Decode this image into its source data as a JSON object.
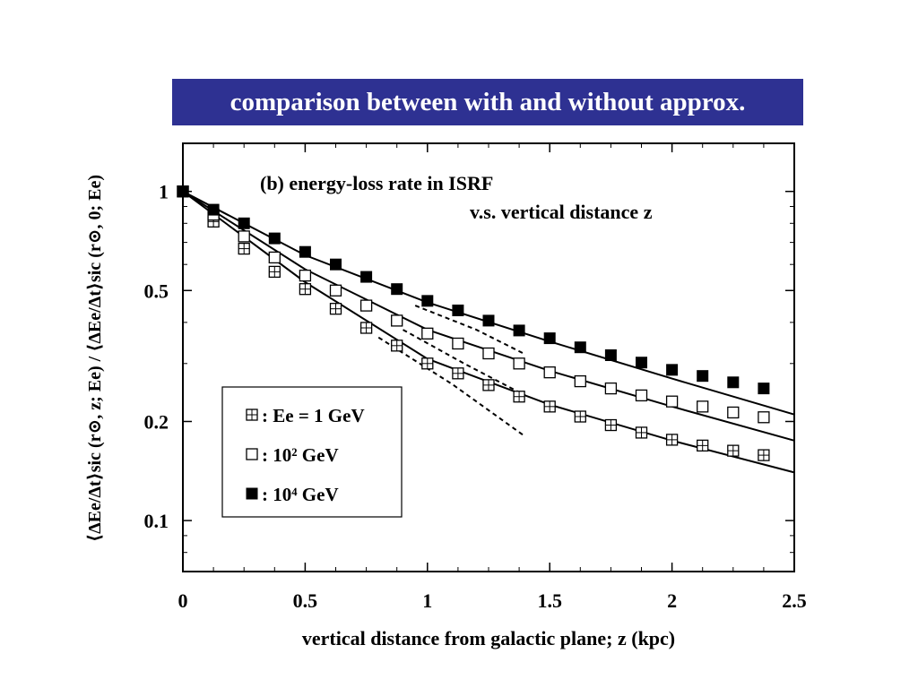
{
  "banner": {
    "title": "comparison between with and without approx."
  },
  "chart_data": {
    "type": "scatter",
    "title": "(b) energy-loss rate in ISRF",
    "subtitle": "v.s. vertical distance z",
    "xlabel": "vertical distance from galactic plane;  z (kpc)",
    "ylabel": "⟨ΔEe/Δt⟩sic (r⊙, z; Ee) / ⟨ΔEe/Δt⟩sic (r⊙, 0; Ee)",
    "xlim": [
      0,
      2.5
    ],
    "ylim": [
      0.07,
      1.4
    ],
    "yscale": "log",
    "grid": false,
    "legend_position": "bottom-left",
    "x_ticks": [
      0,
      0.5,
      1,
      1.5,
      2,
      2.5
    ],
    "x_tick_labels": [
      "0",
      "0.5",
      "1",
      "1.5",
      "2",
      "2.5"
    ],
    "y_ticks": [
      0.1,
      0.2,
      0.5,
      1
    ],
    "y_tick_labels": [
      "0.1",
      "0.2",
      "0.5",
      "1"
    ],
    "series": [
      {
        "name": "Ee = 1 GeV",
        "marker": "crossed-square",
        "x": [
          0,
          0.125,
          0.25,
          0.375,
          0.5,
          0.625,
          0.75,
          0.875,
          1.0,
          1.125,
          1.25,
          1.375,
          1.5,
          1.625,
          1.75,
          1.875,
          2.0,
          2.125,
          2.25,
          2.375
        ],
        "y": [
          1.0,
          0.81,
          0.67,
          0.57,
          0.505,
          0.44,
          0.385,
          0.34,
          0.3,
          0.28,
          0.258,
          0.238,
          0.222,
          0.207,
          0.195,
          0.185,
          0.176,
          0.169,
          0.163,
          0.158
        ],
        "fit_line": {
          "x": [
            0,
            0.5,
            1.0,
            1.5,
            2.0,
            2.5
          ],
          "y": [
            1.0,
            0.53,
            0.31,
            0.225,
            0.175,
            0.14
          ]
        },
        "dashed_line": {
          "x": [
            0.8,
            1.1,
            1.4
          ],
          "y": [
            0.36,
            0.26,
            0.18
          ]
        }
      },
      {
        "name": "10² GeV",
        "marker": "open-square",
        "x": [
          0,
          0.125,
          0.25,
          0.375,
          0.5,
          0.625,
          0.75,
          0.875,
          1.0,
          1.125,
          1.25,
          1.375,
          1.5,
          1.625,
          1.75,
          1.875,
          2.0,
          2.125,
          2.25,
          2.375
        ],
        "y": [
          1.0,
          0.85,
          0.73,
          0.63,
          0.555,
          0.5,
          0.45,
          0.405,
          0.37,
          0.345,
          0.322,
          0.3,
          0.282,
          0.265,
          0.252,
          0.24,
          0.23,
          0.222,
          0.213,
          0.206
        ],
        "fit_line": {
          "x": [
            0,
            0.5,
            1.0,
            1.5,
            2.0,
            2.5
          ],
          "y": [
            1.0,
            0.58,
            0.38,
            0.285,
            0.222,
            0.175
          ]
        },
        "dashed_line": {
          "x": [
            0.9,
            1.15,
            1.4
          ],
          "y": [
            0.38,
            0.3,
            0.24
          ]
        }
      },
      {
        "name": "10⁴ GeV",
        "marker": "filled-square",
        "x": [
          0,
          0.125,
          0.25,
          0.375,
          0.5,
          0.625,
          0.75,
          0.875,
          1.0,
          1.125,
          1.25,
          1.375,
          1.5,
          1.625,
          1.75,
          1.875,
          2.0,
          2.125,
          2.25,
          2.375
        ],
        "y": [
          1.0,
          0.88,
          0.8,
          0.72,
          0.655,
          0.6,
          0.55,
          0.505,
          0.465,
          0.435,
          0.405,
          0.378,
          0.358,
          0.336,
          0.318,
          0.302,
          0.287,
          0.275,
          0.263,
          0.252
        ],
        "fit_line": {
          "x": [
            0,
            0.5,
            1.0,
            1.5,
            2.0,
            2.5
          ],
          "y": [
            1.0,
            0.64,
            0.46,
            0.35,
            0.27,
            0.21
          ]
        },
        "dashed_line": {
          "x": [
            0.95,
            1.2,
            1.4
          ],
          "y": [
            0.45,
            0.38,
            0.32
          ]
        }
      }
    ],
    "legend": [
      {
        "symbol": "⊞",
        "label": ": Ee = 1 GeV"
      },
      {
        "symbol": "□",
        "label": ":      10² GeV"
      },
      {
        "symbol": "■",
        "label": ":      10⁴ GeV"
      }
    ]
  }
}
